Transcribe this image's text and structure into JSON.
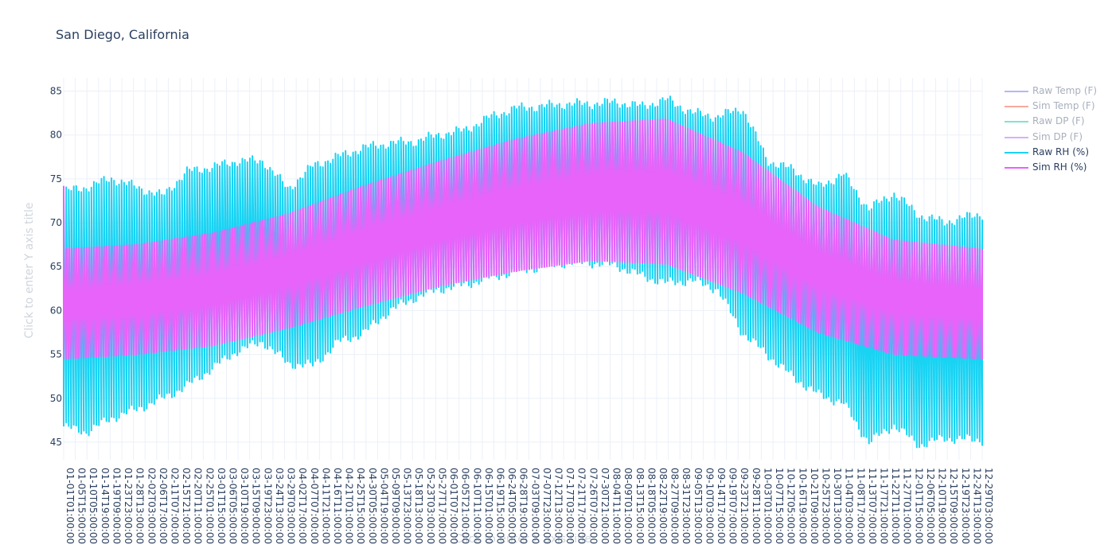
{
  "chart_data": {
    "type": "line",
    "title": "San Diego, California",
    "xlabel": "Click to enter X axis title",
    "ylabel": "Click to enter Y axis title",
    "ylim": [
      43,
      86.5
    ],
    "yticks": [
      45,
      50,
      55,
      60,
      65,
      70,
      75,
      80,
      85
    ],
    "grid": true,
    "legend_position": "top-right",
    "x_tick_labels": [
      "01-01T01:00:00",
      "01-05T15:00:00",
      "01-10T05:00:00",
      "01-14T19:00:00",
      "01-19T09:00:00",
      "01-23T23:00:00",
      "01-28T13:00:00",
      "02-02T03:00:00",
      "02-06T17:00:00",
      "02-11T07:00:00",
      "02-15T21:00:00",
      "02-20T11:00:00",
      "02-25T01:00:00",
      "03-01T15:00:00",
      "03-06T05:00:00",
      "03-10T19:00:00",
      "03-15T09:00:00",
      "03-19T23:00:00",
      "03-24T13:00:00",
      "03-29T03:00:00",
      "04-02T17:00:00",
      "04-07T07:00:00",
      "04-11T21:00:00",
      "04-16T11:00:00",
      "04-21T01:00:00",
      "04-25T15:00:00",
      "04-30T05:00:00",
      "05-04T19:00:00",
      "05-09T09:00:00",
      "05-13T23:00:00",
      "05-18T13:00:00",
      "05-23T03:00:00",
      "05-27T17:00:00",
      "06-01T07:00:00",
      "06-05T21:00:00",
      "06-10T11:00:00",
      "06-15T01:00:00",
      "06-19T15:00:00",
      "06-24T05:00:00",
      "06-28T19:00:00",
      "07-03T09:00:00",
      "07-07T23:00:00",
      "07-12T13:00:00",
      "07-17T03:00:00",
      "07-21T17:00:00",
      "07-26T07:00:00",
      "07-30T21:00:00",
      "08-04T11:00:00",
      "08-09T01:00:00",
      "08-13T15:00:00",
      "08-18T05:00:00",
      "08-22T19:00:00",
      "08-27T09:00:00",
      "08-31T23:00:00",
      "09-05T13:00:00",
      "09-10T03:00:00",
      "09-14T17:00:00",
      "09-19T07:00:00",
      "09-23T21:00:00",
      "09-28T11:00:00",
      "10-03T01:00:00",
      "10-07T15:00:00",
      "10-12T05:00:00",
      "10-16T19:00:00",
      "10-21T09:00:00",
      "10-25T23:00:00",
      "10-30T13:00:00",
      "11-04T03:00:00",
      "11-08T17:00:00",
      "11-13T07:00:00",
      "11-17T21:00:00",
      "11-22T11:00:00",
      "11-27T01:00:00",
      "12-01T15:00:00",
      "12-06T05:00:00",
      "12-10T19:00:00",
      "12-15T09:00:00",
      "12-19T23:00:00",
      "12-24T13:00:00",
      "12-29T03:00:00"
    ],
    "colors": {
      "raw_rh": "#19d3f3",
      "sim_rh": "#e763fa",
      "grid": "#ebf0f8",
      "tick_text": "#2a3f5f"
    },
    "series": [
      {
        "name": "Raw Temp (F)",
        "color": "#636efa",
        "visible": false
      },
      {
        "name": "Sim Temp (F)",
        "color": "#ef553b",
        "visible": false
      },
      {
        "name": "Raw DP (F)",
        "color": "#00cc96",
        "visible": false
      },
      {
        "name": "Sim DP (F)",
        "color": "#ab63fa",
        "visible": false
      },
      {
        "name": "Raw RH (%)",
        "color": "#19d3f3",
        "visible": true,
        "day_of_year": [
          1,
          10,
          20,
          30,
          40,
          50,
          60,
          70,
          80,
          90,
          100,
          110,
          120,
          130,
          140,
          150,
          160,
          170,
          180,
          190,
          200,
          210,
          220,
          230,
          240,
          250,
          260,
          270,
          280,
          290,
          300,
          310,
          320,
          330,
          340,
          350,
          365
        ],
        "upper": [
          73.5,
          74,
          75,
          74,
          73,
          75.8,
          76.3,
          77,
          77,
          73.8,
          76.5,
          77.5,
          78.5,
          79,
          79.2,
          80,
          80.5,
          82,
          83,
          83.2,
          83.5,
          83.5,
          83.7,
          83.2,
          84,
          82.5,
          82,
          83,
          77,
          76,
          74,
          75.5,
          71.5,
          73.3,
          70.8,
          70,
          71
        ],
        "lower": [
          46.8,
          46.2,
          47.8,
          48.8,
          50,
          51.5,
          53.5,
          55.5,
          56.5,
          54,
          53.8,
          56.5,
          57.5,
          60,
          61.5,
          62.5,
          63,
          63.8,
          64.5,
          65,
          65.5,
          65.5,
          65.2,
          64,
          63.2,
          63.5,
          62.5,
          57.5,
          55,
          52.5,
          50.5,
          49.5,
          45,
          47,
          44.7,
          45.5,
          45.3
        ]
      },
      {
        "name": "Sim RH (%)",
        "color": "#e763fa",
        "visible": true,
        "day_of_year": [
          1,
          30,
          60,
          90,
          120,
          150,
          180,
          210,
          240,
          270,
          300,
          330,
          365
        ],
        "upper": [
          67,
          67.5,
          68.8,
          71,
          74.2,
          77,
          79.5,
          81.3,
          81.8,
          78,
          71.8,
          68,
          67
        ],
        "lower": [
          54.5,
          55,
          56,
          58,
          60.5,
          62.8,
          64.5,
          65.7,
          65.3,
          62,
          57.5,
          55,
          54.5
        ],
        "start_spike": 74.2
      }
    ]
  }
}
